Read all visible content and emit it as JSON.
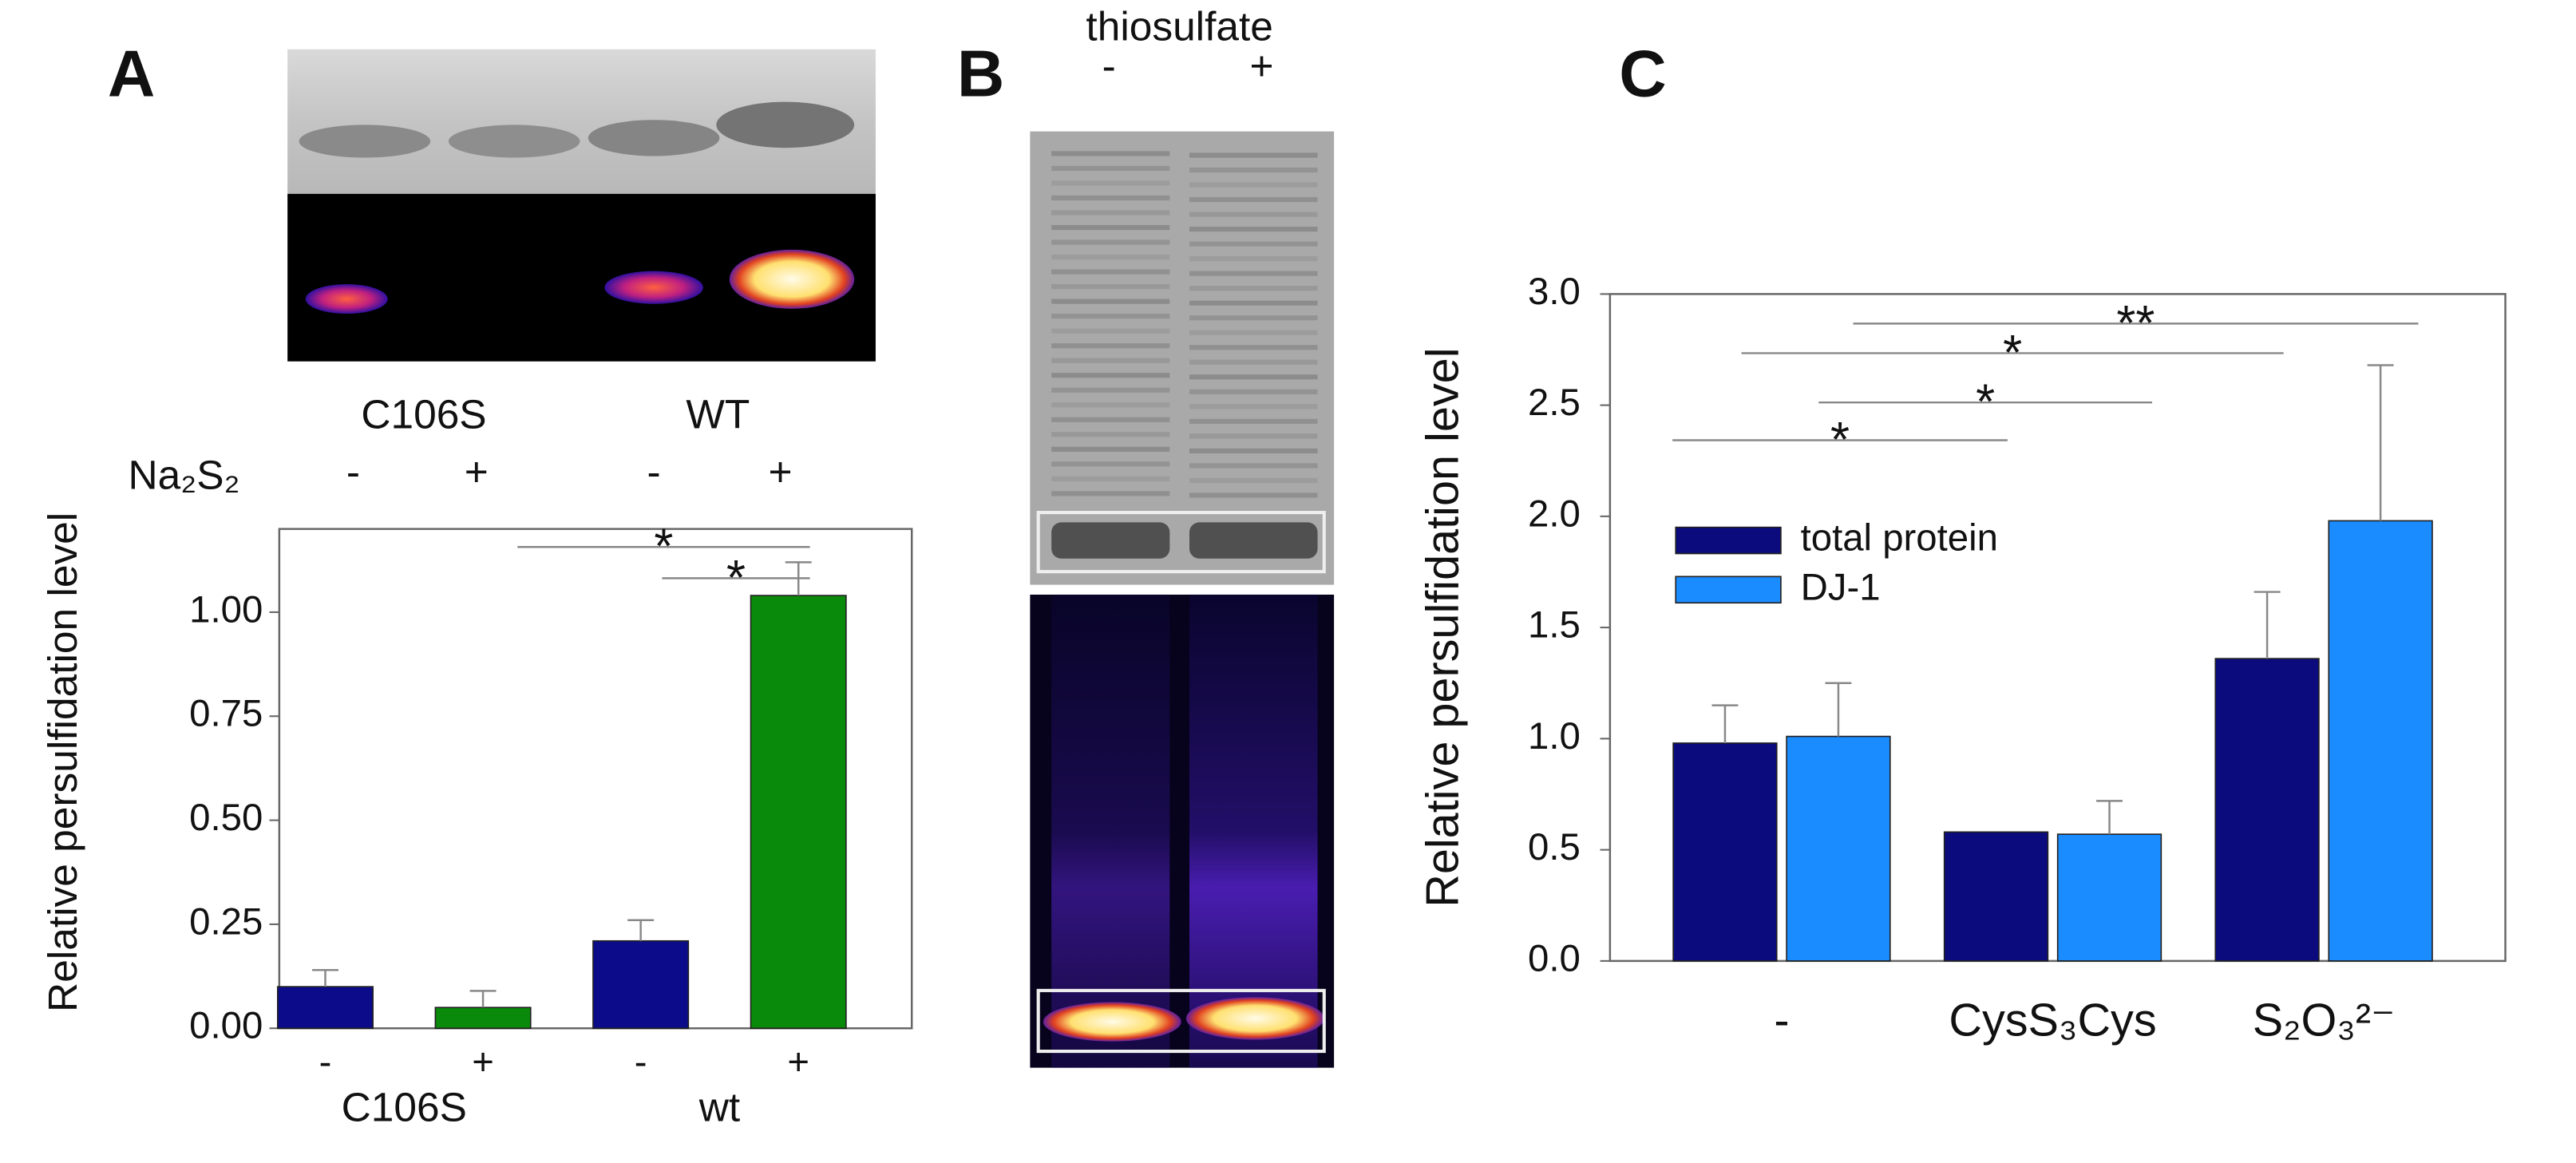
{
  "panel_a": {
    "letter": "A",
    "lane_labels": [
      "C106S",
      "WT"
    ],
    "treatment": "Na₂S₂",
    "treatment_signs": [
      "-",
      "+",
      "-",
      "+"
    ]
  },
  "panel_b": {
    "letter": "B",
    "treatment": "thiosulfate",
    "treatment_signs": [
      "-",
      "+"
    ]
  },
  "panel_c": {
    "letter": "C"
  },
  "chart_data": [
    {
      "type": "bar",
      "y_label": "Relative persulfidation level",
      "categories": [
        "-",
        "+",
        "-",
        "+"
      ],
      "group_labels": [
        "C106S",
        "wt"
      ],
      "values": [
        0.1,
        0.05,
        0.21,
        1.04
      ],
      "errors": [
        0.04,
        0.04,
        0.05,
        0.08
      ],
      "colors": [
        "#0c0c8a",
        "#0a8a0a",
        "#0c0c8a",
        "#0a8a0a"
      ],
      "ylim": [
        0,
        1.2
      ],
      "yticks": [
        {
          "value": 0,
          "label": "0.00"
        },
        0.25,
        {
          "value": 0.5,
          "label": "0.50"
        },
        0.75,
        {
          "value": 1,
          "label": "1.00"
        }
      ],
      "annotations": [
        "*",
        "*"
      ]
    },
    {
      "type": "grouped_bar",
      "y_label": "Relative persulfidation level",
      "categories": [
        "-",
        "CysS₃Cys",
        "S₂O₃²⁻"
      ],
      "series": [
        {
          "name": "total protein",
          "color": "#0b0b7e",
          "values": [
            0.98,
            0.58,
            1.36
          ],
          "errors": [
            0.17,
            0,
            0.3
          ]
        },
        {
          "name": "DJ-1",
          "color": "#1a8cff",
          "values": [
            1.01,
            0.57,
            1.98
          ],
          "errors": [
            0.24,
            0.15,
            0.7
          ]
        }
      ],
      "ylim": [
        0,
        3
      ],
      "yticks": [
        {
          "value": 0,
          "label": "0.0"
        },
        0.5,
        {
          "value": 1,
          "label": "1.0"
        },
        1.5,
        {
          "value": 2,
          "label": "2.0"
        },
        2.5,
        {
          "value": 3,
          "label": "3.0"
        }
      ],
      "legend": "upper left",
      "annotations": [
        "*",
        "*",
        "*",
        "**"
      ]
    }
  ]
}
